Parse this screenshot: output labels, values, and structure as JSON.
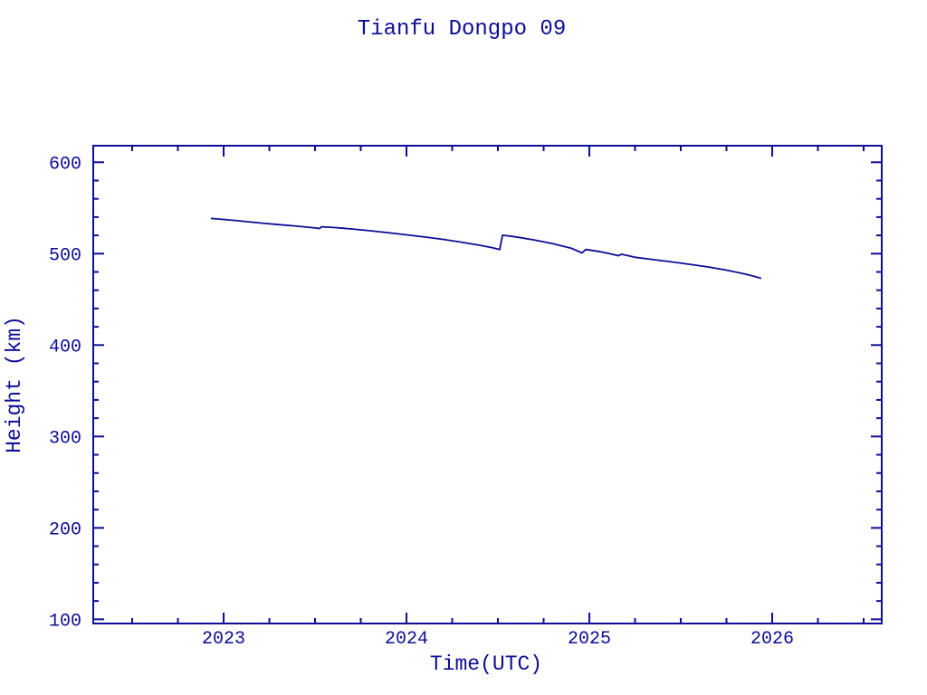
{
  "window": {
    "background": "#ffffff"
  },
  "chart_data": {
    "type": "line",
    "title": "Tianfu Dongpo 09",
    "xlabel": "Time(UTC)",
    "ylabel": "Height (km)",
    "xlim": [
      2022.287,
      2026.599
    ],
    "ylim": [
      95.4,
      618.1
    ],
    "x_major_ticks": [
      2023,
      2024,
      2025,
      2026
    ],
    "x_tick_labels": [
      "2023",
      "2024",
      "2025",
      "2026"
    ],
    "x_minor_step": 0.25,
    "y_major_ticks": [
      100,
      200,
      300,
      400,
      500,
      600
    ],
    "y_tick_labels": [
      "100",
      "200",
      "300",
      "400",
      "500",
      "600"
    ],
    "y_minor_step": 20,
    "grid": false,
    "legend": "none",
    "tick_direction": "in",
    "frame": "box",
    "colors": {
      "line": "#0d0d96",
      "axis": "#0d0d96",
      "text": "#0d0d96",
      "background": "#ffffff"
    },
    "series": [
      {
        "name": "height_km",
        "points": [
          [
            2022.93,
            538.5
          ],
          [
            2023.0,
            537.4
          ],
          [
            2023.1,
            535.5
          ],
          [
            2023.2,
            533.6
          ],
          [
            2023.3,
            531.8
          ],
          [
            2023.4,
            530.1
          ],
          [
            2023.5,
            528.1
          ],
          [
            2023.525,
            527.5
          ],
          [
            2023.535,
            529.4
          ],
          [
            2023.62,
            528.4
          ],
          [
            2023.72,
            526.6
          ],
          [
            2023.82,
            524.6
          ],
          [
            2023.92,
            522.5
          ],
          [
            2024.0,
            520.6
          ],
          [
            2024.1,
            518.2
          ],
          [
            2024.2,
            515.6
          ],
          [
            2024.3,
            512.6
          ],
          [
            2024.4,
            509.2
          ],
          [
            2024.47,
            506.5
          ],
          [
            2024.51,
            504.5
          ],
          [
            2024.525,
            520.2
          ],
          [
            2024.6,
            518.3
          ],
          [
            2024.7,
            514.9
          ],
          [
            2024.8,
            510.9
          ],
          [
            2024.9,
            506.0
          ],
          [
            2024.96,
            500.8
          ],
          [
            2024.98,
            504.6
          ],
          [
            2025.05,
            502.5
          ],
          [
            2025.11,
            500.1
          ],
          [
            2025.16,
            497.7
          ],
          [
            2025.175,
            499.4
          ],
          [
            2025.25,
            496.0
          ],
          [
            2025.35,
            493.5
          ],
          [
            2025.45,
            491.0
          ],
          [
            2025.55,
            488.3
          ],
          [
            2025.65,
            485.4
          ],
          [
            2025.75,
            482.0
          ],
          [
            2025.85,
            477.8
          ],
          [
            2025.9,
            475.3
          ],
          [
            2025.94,
            473.0
          ]
        ]
      }
    ]
  }
}
